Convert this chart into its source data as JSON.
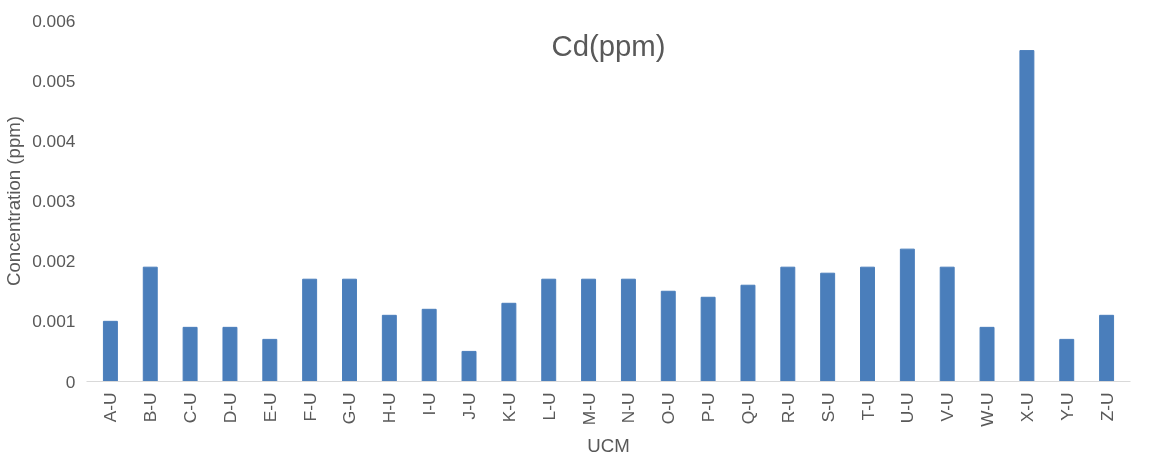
{
  "chart_data": {
    "type": "bar",
    "title": "Cd(ppm)",
    "xlabel": "UCM",
    "ylabel": "Concentration (ppm)",
    "categories": [
      "A-U",
      "B-U",
      "C-U",
      "D-U",
      "E-U",
      "F-U",
      "G-U",
      "H-U",
      "I-U",
      "J-U",
      "K-U",
      "L-U",
      "M-U",
      "N-U",
      "O-U",
      "P-U",
      "Q-U",
      "R-U",
      "S-U",
      "T-U",
      "U-U",
      "V-U",
      "W-U",
      "X-U",
      "Y-U",
      "Z-U"
    ],
    "values": [
      0.001,
      0.0019,
      0.0009,
      0.0009,
      0.0007,
      0.0017,
      0.0017,
      0.0011,
      0.0012,
      0.0005,
      0.0013,
      0.0017,
      0.0017,
      0.0017,
      0.0015,
      0.0014,
      0.0016,
      0.0019,
      0.0018,
      0.0019,
      0.0022,
      0.0019,
      0.0009,
      0.0055,
      0.0007,
      0.0011
    ],
    "color": "#4a7ebb",
    "ylim": [
      0,
      0.006
    ],
    "yticks": [
      {
        "value": 0,
        "label": "0"
      },
      0.001,
      0.002,
      0.003,
      0.004,
      0.005,
      0.006
    ],
    "grid": false
  }
}
